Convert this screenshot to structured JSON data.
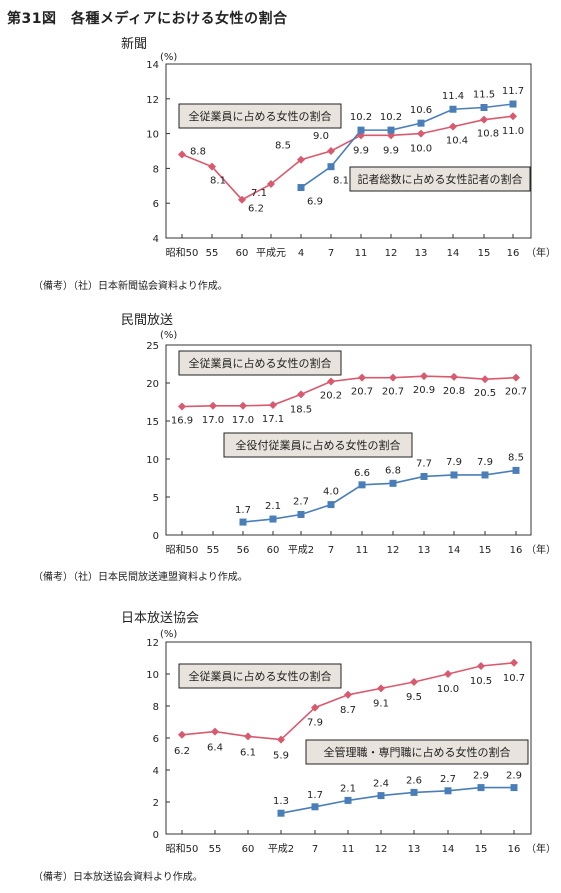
{
  "figure_title": "第31図　各種メディアにおける女性の割合",
  "colors": {
    "female_staff": "#d95a6e",
    "other": "#4a7eb8",
    "axis": "#333333",
    "box_bg": "#e8e3dd"
  },
  "chart_data": [
    {
      "type": "line",
      "title": "新聞",
      "unit": "(%)",
      "year_unit": "（年）",
      "categories": [
        "昭和50",
        "55",
        "60",
        "平成元",
        "4",
        "7",
        "11",
        "12",
        "13",
        "14",
        "15",
        "16"
      ],
      "ylim": [
        4,
        14
      ],
      "yticks": [
        4,
        6,
        8,
        10,
        12,
        14
      ],
      "grid": false,
      "series": [
        {
          "name": "全従業員に占める女性の割合",
          "color": "#d95a6e",
          "marker": "diamond",
          "values": [
            8.8,
            8.1,
            6.2,
            7.1,
            8.5,
            9.0,
            9.9,
            9.9,
            10.0,
            10.4,
            10.8,
            11.0
          ]
        },
        {
          "name": "記者総数に占める女性記者の割合",
          "color": "#4a7eb8",
          "marker": "square",
          "values": [
            null,
            null,
            null,
            null,
            6.9,
            8.1,
            10.2,
            10.2,
            10.6,
            11.4,
            11.5,
            11.7
          ]
        }
      ],
      "note": "（備考）（社）日本新聞協会資料より作成。"
    },
    {
      "type": "line",
      "title": "民間放送",
      "unit": "(%)",
      "year_unit": "（年）",
      "categories": [
        "昭和50",
        "55",
        "56",
        "60",
        "平成2",
        "7",
        "11",
        "12",
        "13",
        "14",
        "15",
        "16"
      ],
      "ylim": [
        0,
        25
      ],
      "yticks": [
        0,
        5,
        10,
        15,
        20,
        25
      ],
      "grid": false,
      "series": [
        {
          "name": "全従業員に占める女性の割合",
          "color": "#d95a6e",
          "marker": "diamond",
          "values": [
            16.9,
            17.0,
            17.0,
            17.1,
            18.5,
            20.2,
            20.7,
            20.7,
            20.9,
            20.8,
            20.5,
            20.7
          ]
        },
        {
          "name": "全役付従業員に占める女性の割合",
          "color": "#4a7eb8",
          "marker": "square",
          "values": [
            null,
            null,
            1.7,
            2.1,
            2.7,
            4.0,
            6.6,
            6.8,
            7.7,
            7.9,
            7.9,
            8.5
          ]
        }
      ],
      "note": "（備考）（社）日本民間放送連盟資料より作成。"
    },
    {
      "type": "line",
      "title": "日本放送協会",
      "unit": "(%)",
      "year_unit": "（年）",
      "categories": [
        "昭和50",
        "55",
        "60",
        "平成2",
        "7",
        "11",
        "12",
        "13",
        "14",
        "15",
        "16"
      ],
      "ylim": [
        0,
        12
      ],
      "yticks": [
        0,
        2,
        4,
        6,
        8,
        10,
        12
      ],
      "grid": false,
      "series": [
        {
          "name": "全従業員に占める女性の割合",
          "color": "#d95a6e",
          "marker": "diamond",
          "values": [
            6.2,
            6.4,
            6.1,
            5.9,
            7.9,
            8.7,
            9.1,
            9.5,
            10.0,
            10.5,
            10.7
          ]
        },
        {
          "name": "全管理職・専門職に占める女性の割合",
          "color": "#4a7eb8",
          "marker": "square",
          "values": [
            null,
            null,
            null,
            1.3,
            1.7,
            2.1,
            2.4,
            2.6,
            2.7,
            2.9,
            2.9
          ]
        }
      ],
      "note": "（備考）日本放送協会資料より作成。"
    }
  ]
}
